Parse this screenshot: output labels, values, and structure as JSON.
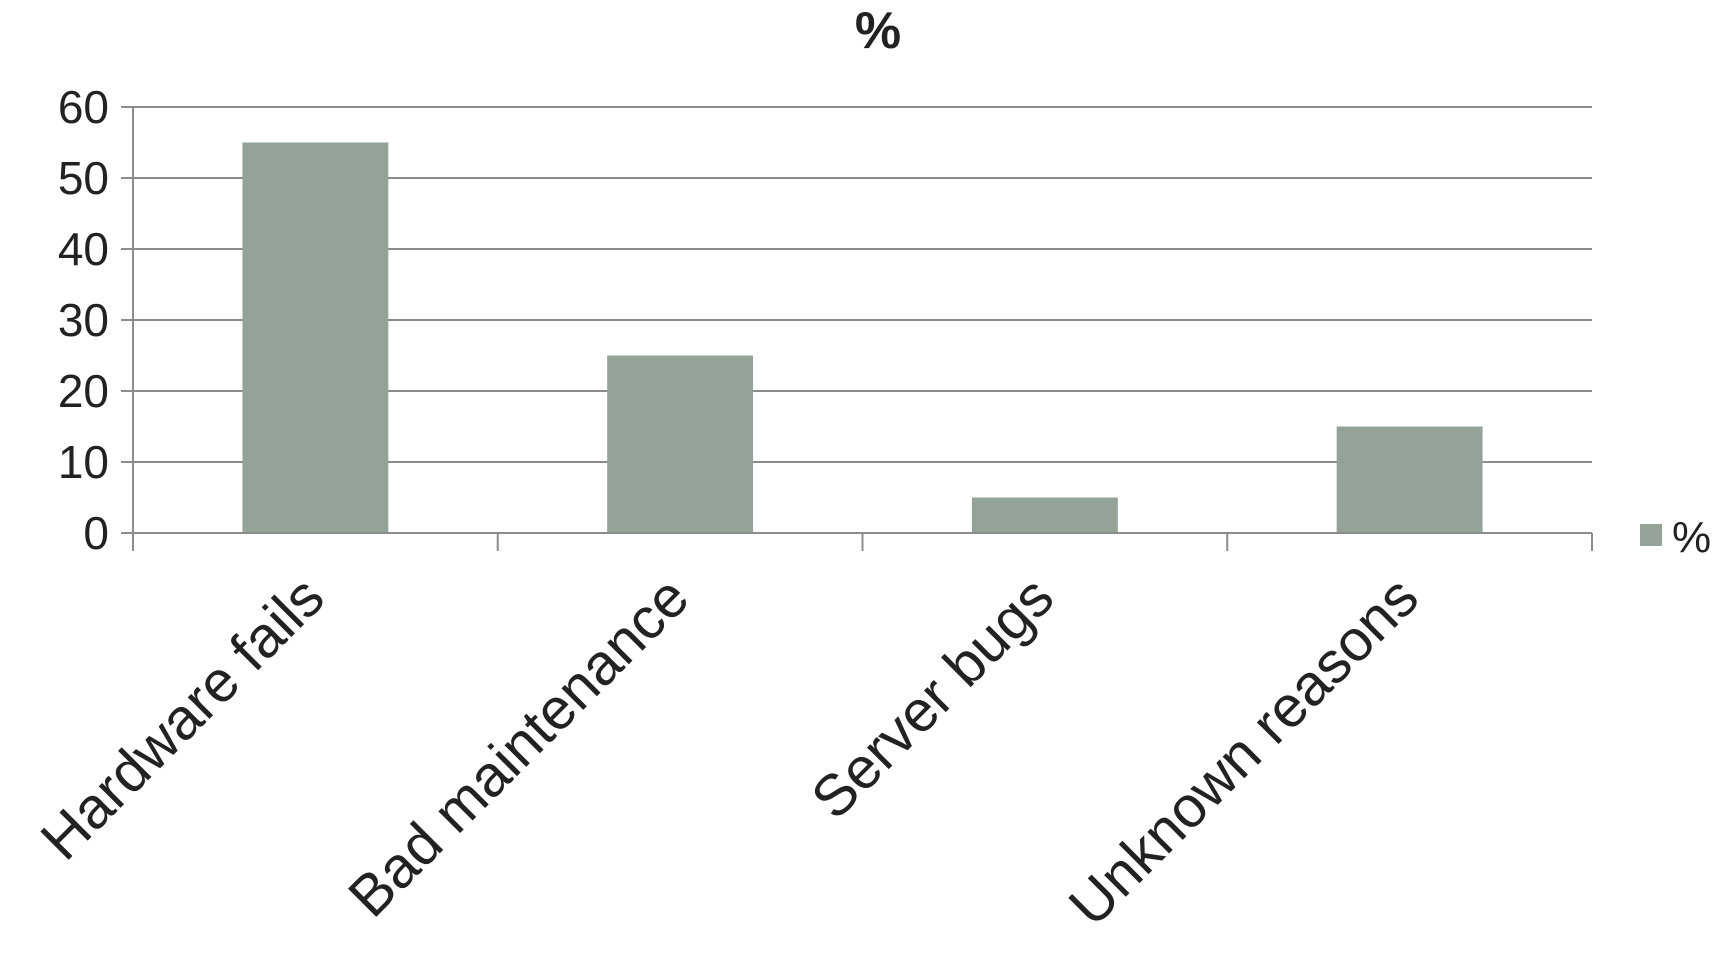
{
  "chart_data": {
    "type": "bar",
    "title": "%",
    "categories": [
      "Hardware fails",
      "Bad maintenance",
      "Server bugs",
      "Unknown reasons"
    ],
    "series": [
      {
        "name": "%",
        "values": [
          55,
          25,
          5,
          15
        ]
      }
    ],
    "ylim": [
      0,
      60
    ],
    "yticks": [
      0,
      10,
      20,
      30,
      40,
      50,
      60
    ],
    "grid": true,
    "legend": "right",
    "bar_color": "#93a398",
    "grid_color": "#8c8c8c",
    "text_color": "#222222"
  }
}
